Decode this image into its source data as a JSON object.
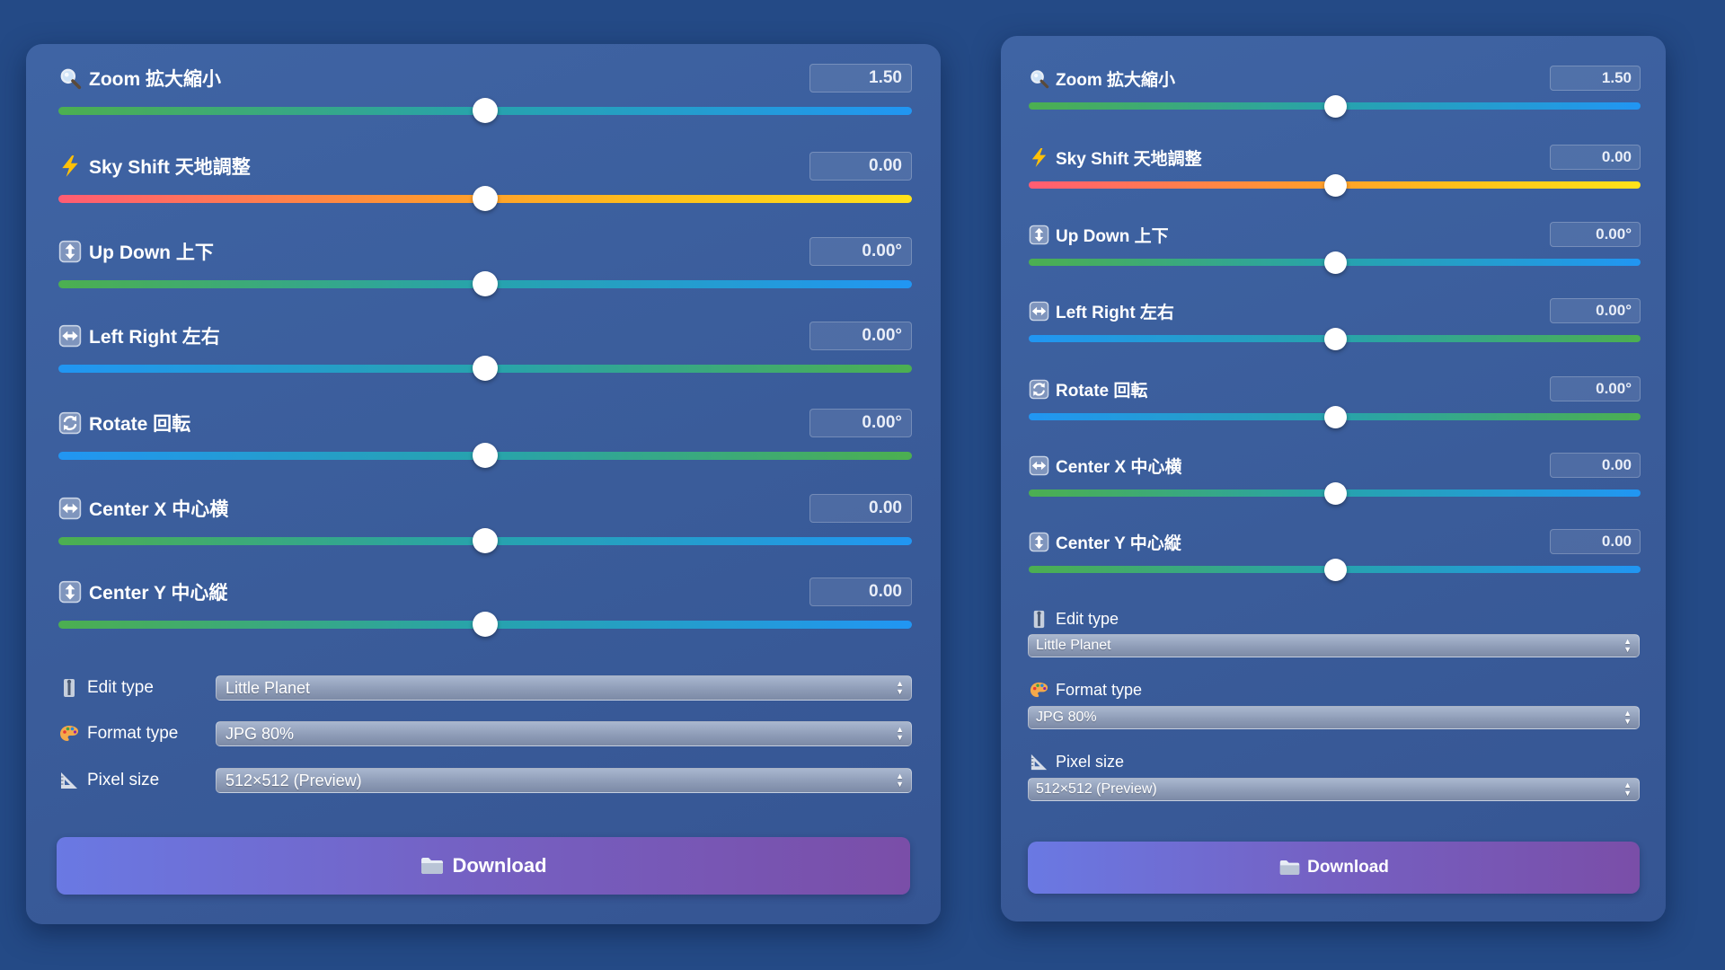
{
  "panels": [
    {
      "id": "left",
      "sliders": [
        {
          "key": "zoom",
          "label": "Zoom 拡大縮小",
          "value": "1.50",
          "icon": "magnifier-icon",
          "gradient": "green-blue",
          "level": 0.5
        },
        {
          "key": "sky-shift",
          "label": "Sky Shift 天地調整",
          "value": "0.00",
          "icon": "lightning-icon",
          "gradient": "red-yellow",
          "level": 0.5
        },
        {
          "key": "up-down",
          "label": "Up Down 上下",
          "value": "0.00°",
          "icon": "up-down-arrow-icon",
          "gradient": "green-blue",
          "level": 0.5
        },
        {
          "key": "left-right",
          "label": "Left Right 左右",
          "value": "0.00°",
          "icon": "left-right-arrow-icon",
          "gradient": "blue-green",
          "level": 0.5
        },
        {
          "key": "rotate",
          "label": "Rotate 回転",
          "value": "0.00°",
          "icon": "rotate-icon",
          "gradient": "blue-green",
          "level": 0.5
        },
        {
          "key": "center-x",
          "label": "Center X 中心横",
          "value": "0.00",
          "icon": "left-right-arrow-icon",
          "gradient": "green-blue",
          "level": 0.5
        },
        {
          "key": "center-y",
          "label": "Center Y 中心縦",
          "value": "0.00",
          "icon": "up-down-arrow-icon",
          "gradient": "green-blue",
          "level": 0.5
        }
      ],
      "selects": [
        {
          "key": "edit-type",
          "label": "Edit type",
          "value": "Little Planet",
          "icon": "pin-icon"
        },
        {
          "key": "format-type",
          "label": "Format type",
          "value": "JPG 80%",
          "icon": "palette-icon"
        },
        {
          "key": "pixel-size",
          "label": "Pixel size",
          "value": "512×512 (Preview)",
          "icon": "ruler-icon"
        }
      ],
      "download": {
        "label": "Download",
        "icon": "folder-icon"
      }
    },
    {
      "id": "right",
      "sliders": [
        {
          "key": "zoom",
          "label": "Zoom 拡大縮小",
          "value": "1.50",
          "icon": "magnifier-icon",
          "gradient": "green-blue",
          "level": 0.5
        },
        {
          "key": "sky-shift",
          "label": "Sky Shift 天地調整",
          "value": "0.00",
          "icon": "lightning-icon",
          "gradient": "red-yellow",
          "level": 0.5
        },
        {
          "key": "up-down",
          "label": "Up Down 上下",
          "value": "0.00°",
          "icon": "up-down-arrow-icon",
          "gradient": "green-blue",
          "level": 0.5
        },
        {
          "key": "left-right",
          "label": "Left Right 左右",
          "value": "0.00°",
          "icon": "left-right-arrow-icon",
          "gradient": "blue-green",
          "level": 0.5
        },
        {
          "key": "rotate",
          "label": "Rotate 回転",
          "value": "0.00°",
          "icon": "rotate-icon",
          "gradient": "blue-green",
          "level": 0.5
        },
        {
          "key": "center-x",
          "label": "Center X 中心横",
          "value": "0.00",
          "icon": "left-right-arrow-icon",
          "gradient": "green-blue",
          "level": 0.5
        },
        {
          "key": "center-y",
          "label": "Center Y 中心縦",
          "value": "0.00",
          "icon": "up-down-arrow-icon",
          "gradient": "green-blue",
          "level": 0.5
        }
      ],
      "selects": [
        {
          "key": "edit-type",
          "label": "Edit type",
          "value": "Little Planet",
          "icon": "pin-icon"
        },
        {
          "key": "format-type",
          "label": "Format type",
          "value": "JPG 80%",
          "icon": "palette-icon"
        },
        {
          "key": "pixel-size",
          "label": "Pixel size",
          "value": "512×512 (Preview)",
          "icon": "ruler-icon"
        }
      ],
      "download": {
        "label": "Download",
        "icon": "folder-icon"
      }
    }
  ],
  "colors": {
    "background": "#244a86",
    "panel": "#3d619f",
    "button_start": "#6a79e3",
    "button_end": "#7a4ea8"
  }
}
